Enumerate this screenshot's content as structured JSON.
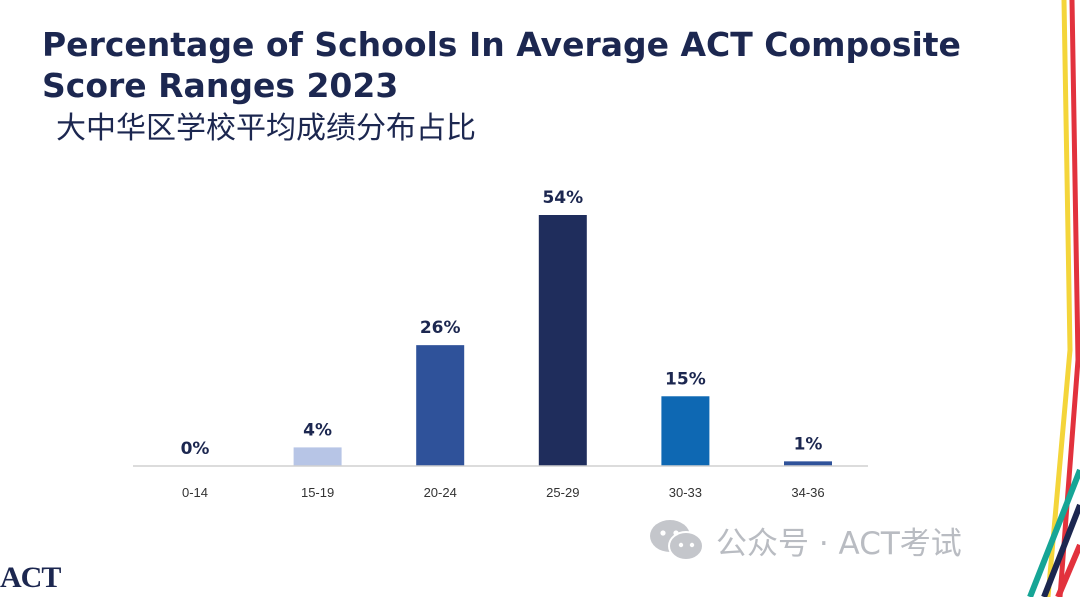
{
  "header": {
    "title_line1": "Percentage of Schools In Average ACT Composite",
    "title_line2": "Score Ranges 2023",
    "title_zh": "大中华区学校平均成绩分布占比"
  },
  "chart_data": {
    "type": "bar",
    "title": "Percentage of Schools In Average ACT Composite Score Ranges 2023",
    "categories": [
      "0-14",
      "15-19",
      "20-24",
      "25-29",
      "30-33",
      "34-36"
    ],
    "values": [
      0,
      4,
      26,
      54,
      15,
      1
    ],
    "data_labels": [
      "0%",
      "4%",
      "26%",
      "54%",
      "15%",
      "1%"
    ],
    "colors": [
      "#2b4a8f",
      "#b7c5e6",
      "#2f529a",
      "#1f2d5c",
      "#0e68b3",
      "#2f529a"
    ],
    "xlabel": "",
    "ylabel": "",
    "ylim": [
      0,
      54
    ],
    "grid": false,
    "legend": "none"
  },
  "watermark": {
    "text": "公众号 · ACT考试",
    "icon": "wechat-icon"
  },
  "logo": {
    "text": "ACT"
  },
  "decor": {
    "stripe_colors": [
      "#f4d53a",
      "#e2323d",
      "#ffffff",
      "#16a596",
      "#1c2750"
    ]
  }
}
